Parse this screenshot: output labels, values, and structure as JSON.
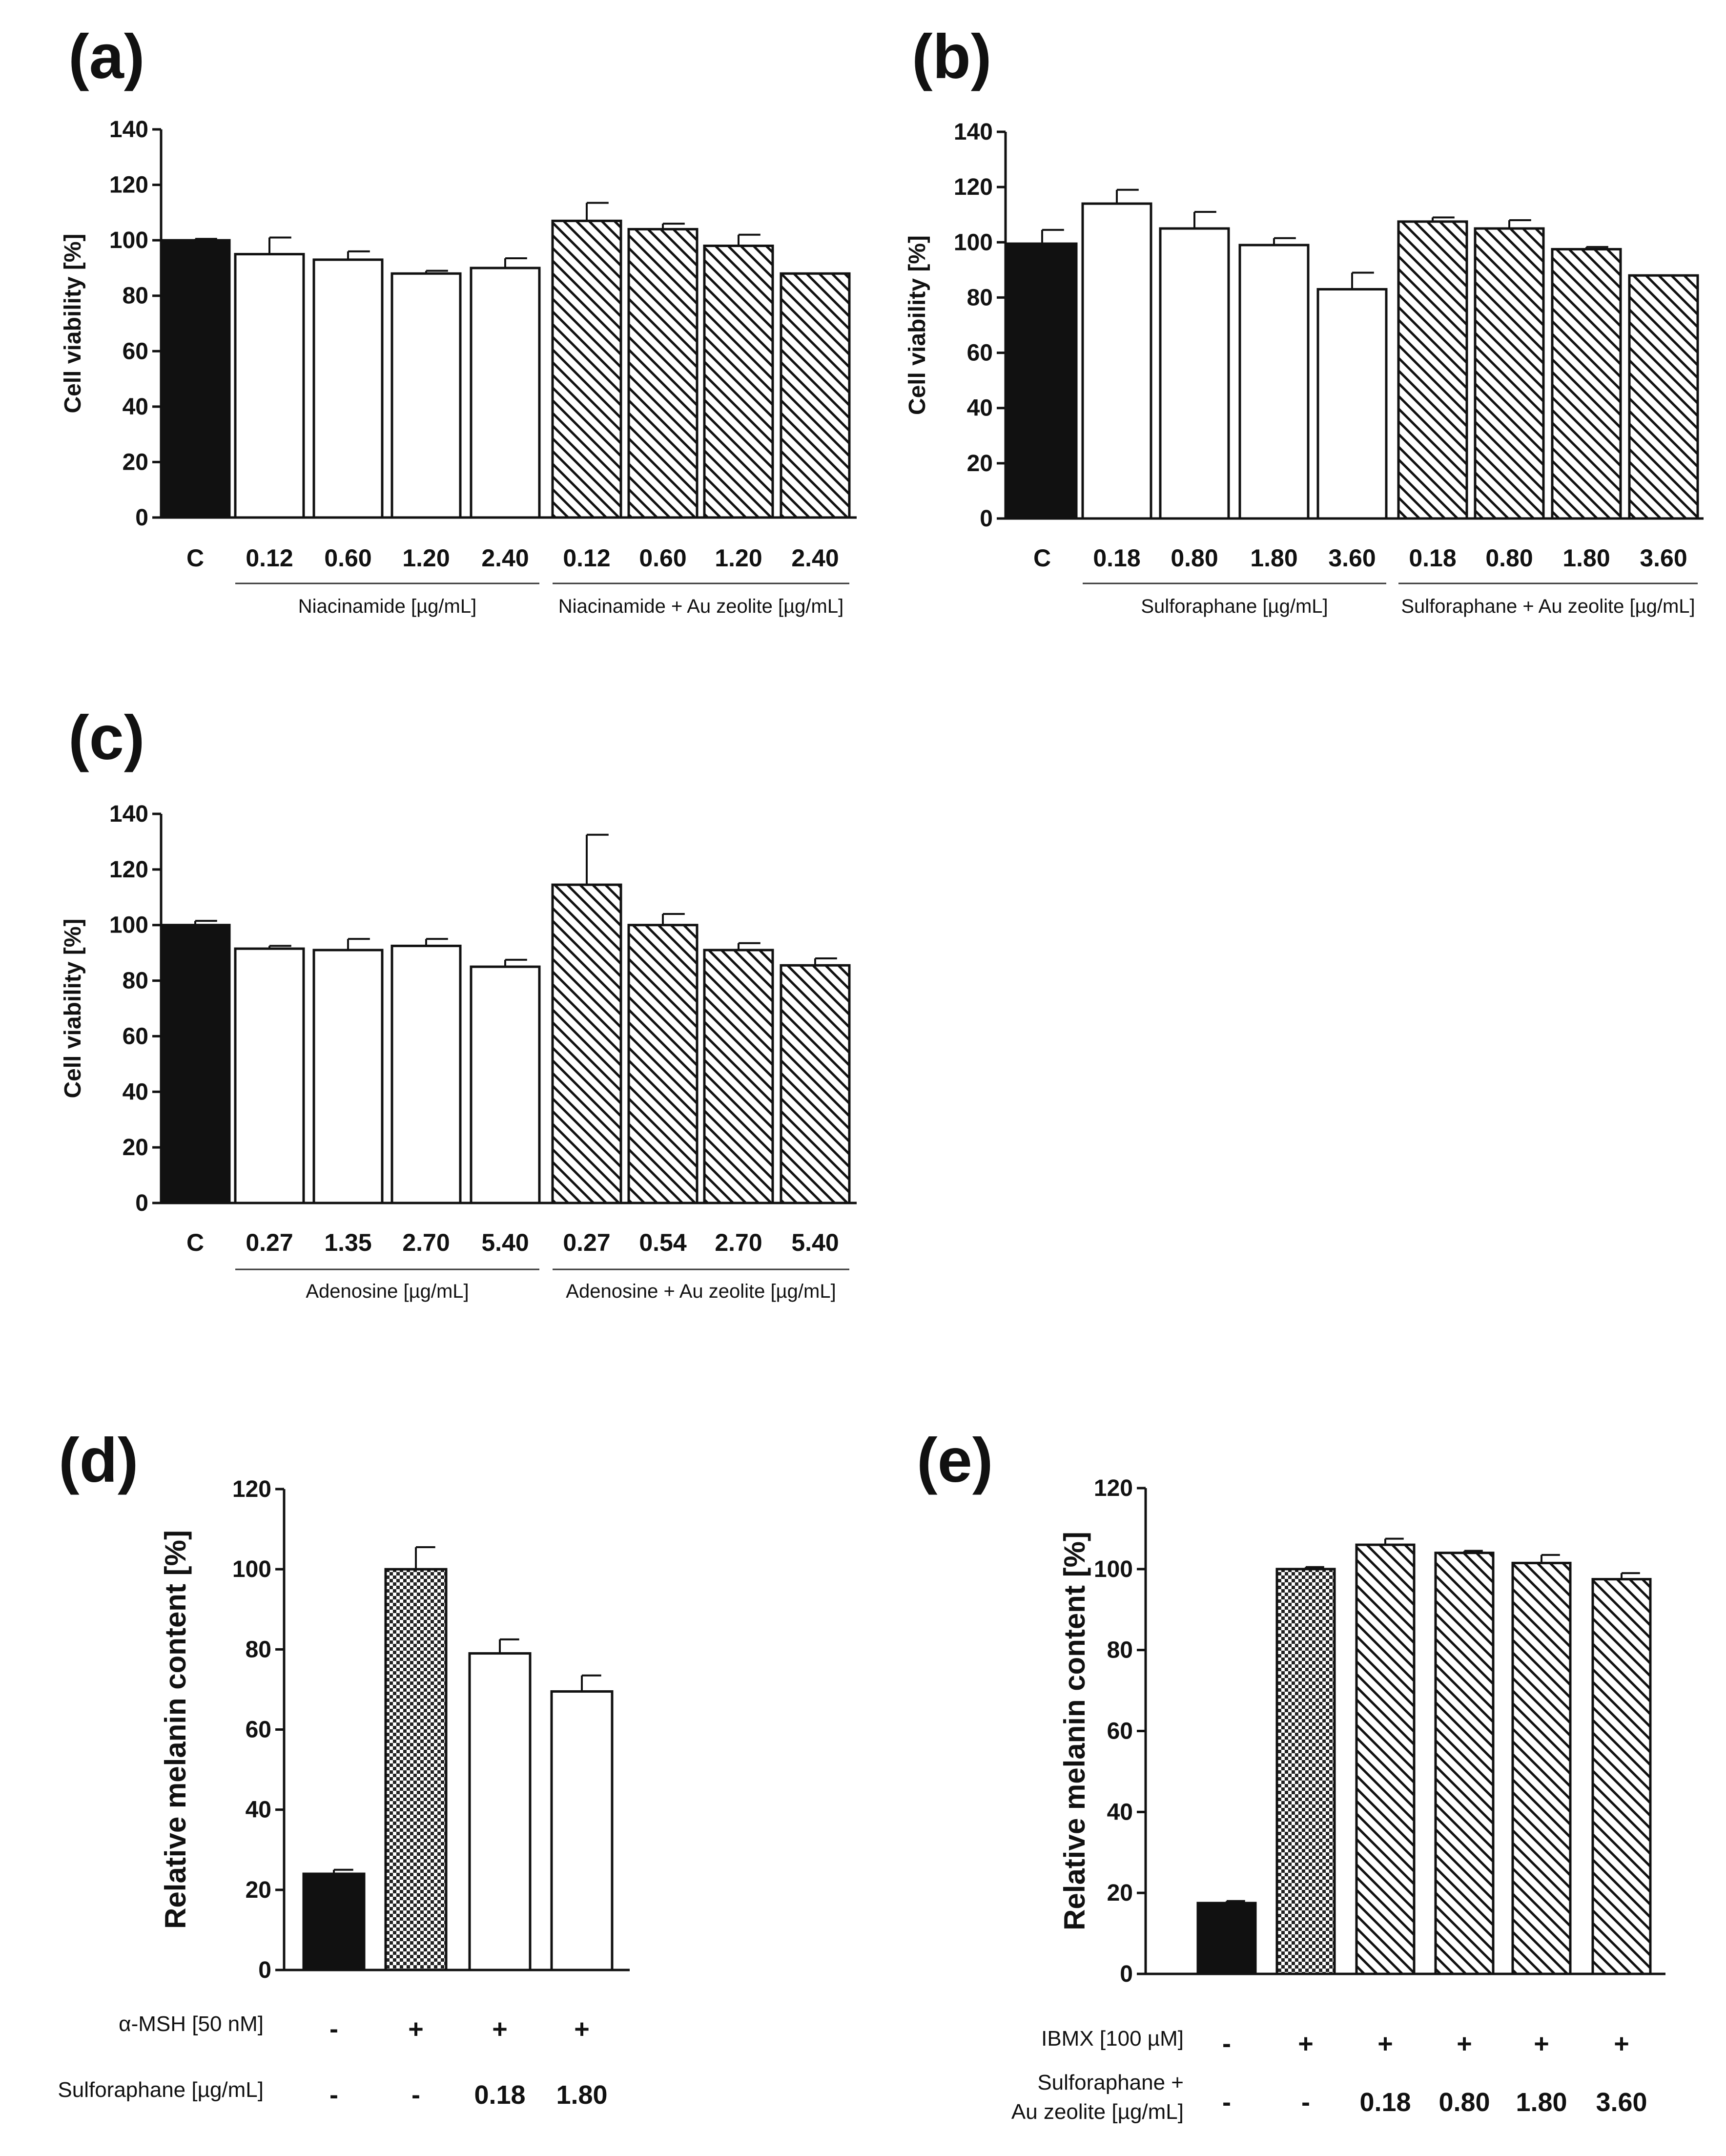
{
  "chart_data": [
    {
      "panel": "(a)",
      "type": "bar",
      "ylabel": "Cell viability [%]",
      "ylim": [
        0,
        140
      ],
      "yticks": [
        0,
        20,
        40,
        60,
        80,
        100,
        120,
        140
      ],
      "categories": [
        "C",
        "0.12",
        "0.60",
        "1.20",
        "2.40",
        "0.12",
        "0.60",
        "1.20",
        "2.40"
      ],
      "values": [
        100,
        95,
        93,
        88,
        90,
        107,
        104,
        98,
        88
      ],
      "errors": [
        0.5,
        6,
        3,
        1,
        3.5,
        6.5,
        2,
        4,
        0
      ],
      "fills": [
        "solid",
        "open",
        "open",
        "open",
        "open",
        "hatch",
        "hatch",
        "hatch",
        "hatch"
      ],
      "groups": [
        {
          "label": "Niacinamide [µg/mL]",
          "from": 1,
          "to": 4
        },
        {
          "label": "Niacinamide + Au zeolite [µg/mL]",
          "from": 5,
          "to": 8
        }
      ]
    },
    {
      "panel": "(b)",
      "type": "bar",
      "ylabel": "Cell viability [%]",
      "ylim": [
        0,
        140
      ],
      "yticks": [
        0,
        20,
        40,
        60,
        80,
        100,
        120,
        140
      ],
      "categories": [
        "C",
        "0.18",
        "0.80",
        "1.80",
        "3.60",
        "0.18",
        "0.80",
        "1.80",
        "3.60"
      ],
      "values": [
        99.5,
        114,
        105,
        99,
        83,
        107.5,
        105,
        97.5,
        88
      ],
      "errors": [
        5,
        5,
        6,
        2.5,
        6,
        1.5,
        3,
        0.8,
        0
      ],
      "fills": [
        "solid",
        "open",
        "open",
        "open",
        "open",
        "hatch",
        "hatch",
        "hatch",
        "hatch"
      ],
      "groups": [
        {
          "label": "Sulforaphane [µg/mL]",
          "from": 1,
          "to": 4
        },
        {
          "label": "Sulforaphane + Au zeolite [µg/mL]",
          "from": 5,
          "to": 8
        }
      ]
    },
    {
      "panel": "(c)",
      "type": "bar",
      "ylabel": "Cell viability [%]",
      "ylim": [
        0,
        140
      ],
      "yticks": [
        0,
        20,
        40,
        60,
        80,
        100,
        120,
        140
      ],
      "categories": [
        "C",
        "0.27",
        "1.35",
        "2.70",
        "5.40",
        "0.27",
        "0.54",
        "2.70",
        "5.40"
      ],
      "values": [
        100,
        91.5,
        91,
        92.5,
        85,
        114.5,
        100,
        91,
        85.5
      ],
      "errors": [
        1.5,
        1,
        4,
        2.5,
        2.5,
        18,
        4,
        2.5,
        2.5
      ],
      "fills": [
        "solid",
        "open",
        "open",
        "open",
        "open",
        "hatch",
        "hatch",
        "hatch",
        "hatch"
      ],
      "groups": [
        {
          "label": "Adenosine [µg/mL]",
          "from": 1,
          "to": 4
        },
        {
          "label": "Adenosine + Au zeolite [µg/mL]",
          "from": 5,
          "to": 8
        }
      ]
    },
    {
      "panel": "(d)",
      "type": "bar",
      "ylabel": "Relative melanin content [%]",
      "ylim": [
        0,
        120
      ],
      "yticks": [
        0,
        20,
        40,
        60,
        80,
        100,
        120
      ],
      "values": [
        24,
        100,
        79,
        69.5
      ],
      "errors": [
        1,
        5.5,
        3.5,
        4
      ],
      "fills": [
        "solid",
        "check",
        "open",
        "open"
      ],
      "rows": [
        {
          "label": "α-MSH [50 nM]",
          "values": [
            "-",
            "+",
            "+",
            "+"
          ],
          "bold": false
        },
        {
          "label": "Sulforaphane [µg/mL]",
          "values": [
            "-",
            "-",
            "0.18",
            "1.80"
          ],
          "bold": true
        }
      ]
    },
    {
      "panel": "(e)",
      "type": "bar",
      "ylabel": "Relative melanin content [%]",
      "ylim": [
        0,
        120
      ],
      "yticks": [
        0,
        20,
        40,
        60,
        80,
        100,
        120
      ],
      "values": [
        17.5,
        100,
        106,
        104,
        101.5,
        97.5
      ],
      "errors": [
        0.5,
        0.5,
        1.5,
        0.5,
        2,
        1.5
      ],
      "fills": [
        "solid",
        "check",
        "hatch",
        "hatch",
        "hatch",
        "hatch"
      ],
      "rows": [
        {
          "label": "IBMX [100 µM]",
          "values": [
            "-",
            "+",
            "+",
            "+",
            "+",
            "+"
          ],
          "bold": false
        },
        {
          "label": "Sulforaphane +\nAu zeolite [µg/mL]",
          "values": [
            "-",
            "-",
            "0.18",
            "0.80",
            "1.80",
            "3.60"
          ],
          "bold": true
        }
      ]
    }
  ]
}
